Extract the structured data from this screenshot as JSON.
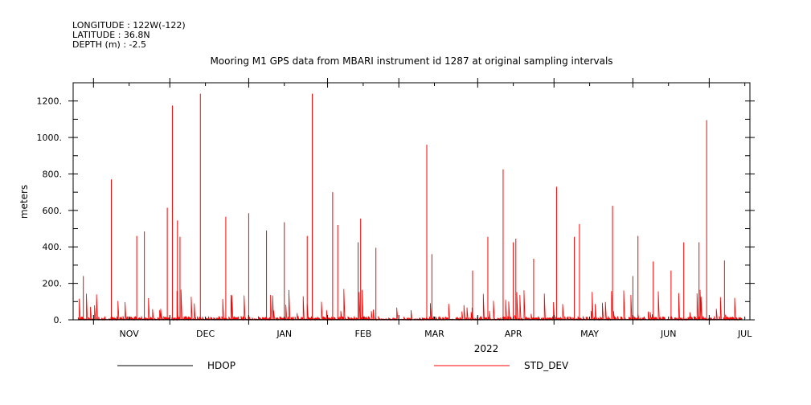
{
  "header": {
    "longitude": "LONGITUDE : 122W(-122)",
    "latitude": "LATITUDE : 36.8N",
    "depth": "DEPTH (m) : -2.5"
  },
  "chart_data": {
    "type": "line",
    "title": "Mooring M1 GPS data from MBARI instrument id 1287 at original sampling intervals",
    "xlabel": "2022",
    "ylabel": "meters",
    "x_ticks": [
      "NOV",
      "DEC",
      "JAN",
      "FEB",
      "MAR",
      "APR",
      "MAY",
      "JUN",
      "JUL"
    ],
    "x_range": [
      "2021-10-24",
      "2022-07-17"
    ],
    "ylim": [
      0,
      1300
    ],
    "y_ticks": [
      0,
      200,
      400,
      600,
      800,
      1000,
      1200
    ],
    "y_tick_labels": [
      "0.",
      "200.",
      "400.",
      "600.",
      "800.",
      "1000.",
      "1200."
    ],
    "grid": false,
    "legend_position": "bottom",
    "series": [
      {
        "name": "HDOP",
        "color": "#000000",
        "points": [
          [
            "2021-10-26",
            1
          ],
          [
            "2022-07-14",
            1
          ]
        ]
      },
      {
        "name": "STD_DEV",
        "color": "#ff0000",
        "spikes": [
          [
            "2021-10-28",
            240
          ],
          [
            "2021-11-08",
            770
          ],
          [
            "2021-11-18",
            460
          ],
          [
            "2021-11-21",
            485
          ],
          [
            "2021-11-30",
            615
          ],
          [
            "2021-12-02",
            1175
          ],
          [
            "2021-12-04",
            545
          ],
          [
            "2021-12-05",
            455
          ],
          [
            "2021-12-13",
            1240
          ],
          [
            "2021-12-23",
            565
          ],
          [
            "2022-01-01",
            585
          ],
          [
            "2022-01-08",
            490
          ],
          [
            "2022-01-15",
            535
          ],
          [
            "2022-01-24",
            460
          ],
          [
            "2022-01-26",
            1240
          ],
          [
            "2022-02-03",
            700
          ],
          [
            "2022-02-05",
            520
          ],
          [
            "2022-02-13",
            425
          ],
          [
            "2022-02-14",
            555
          ],
          [
            "2022-02-20",
            395
          ],
          [
            "2022-03-12",
            960
          ],
          [
            "2022-03-14",
            360
          ],
          [
            "2022-03-30",
            270
          ],
          [
            "2022-04-05",
            455
          ],
          [
            "2022-04-11",
            825
          ],
          [
            "2022-04-15",
            425
          ],
          [
            "2022-04-16",
            445
          ],
          [
            "2022-04-23",
            335
          ],
          [
            "2022-05-02",
            730
          ],
          [
            "2022-05-09",
            455
          ],
          [
            "2022-05-11",
            525
          ],
          [
            "2022-05-24",
            625
          ],
          [
            "2022-06-01",
            240
          ],
          [
            "2022-06-03",
            460
          ],
          [
            "2022-06-09",
            320
          ],
          [
            "2022-06-16",
            270
          ],
          [
            "2022-06-21",
            425
          ],
          [
            "2022-06-27",
            425
          ],
          [
            "2022-06-30",
            1095
          ],
          [
            "2022-07-07",
            325
          ]
        ],
        "baseline_range": [
          20,
          170
        ]
      }
    ]
  }
}
